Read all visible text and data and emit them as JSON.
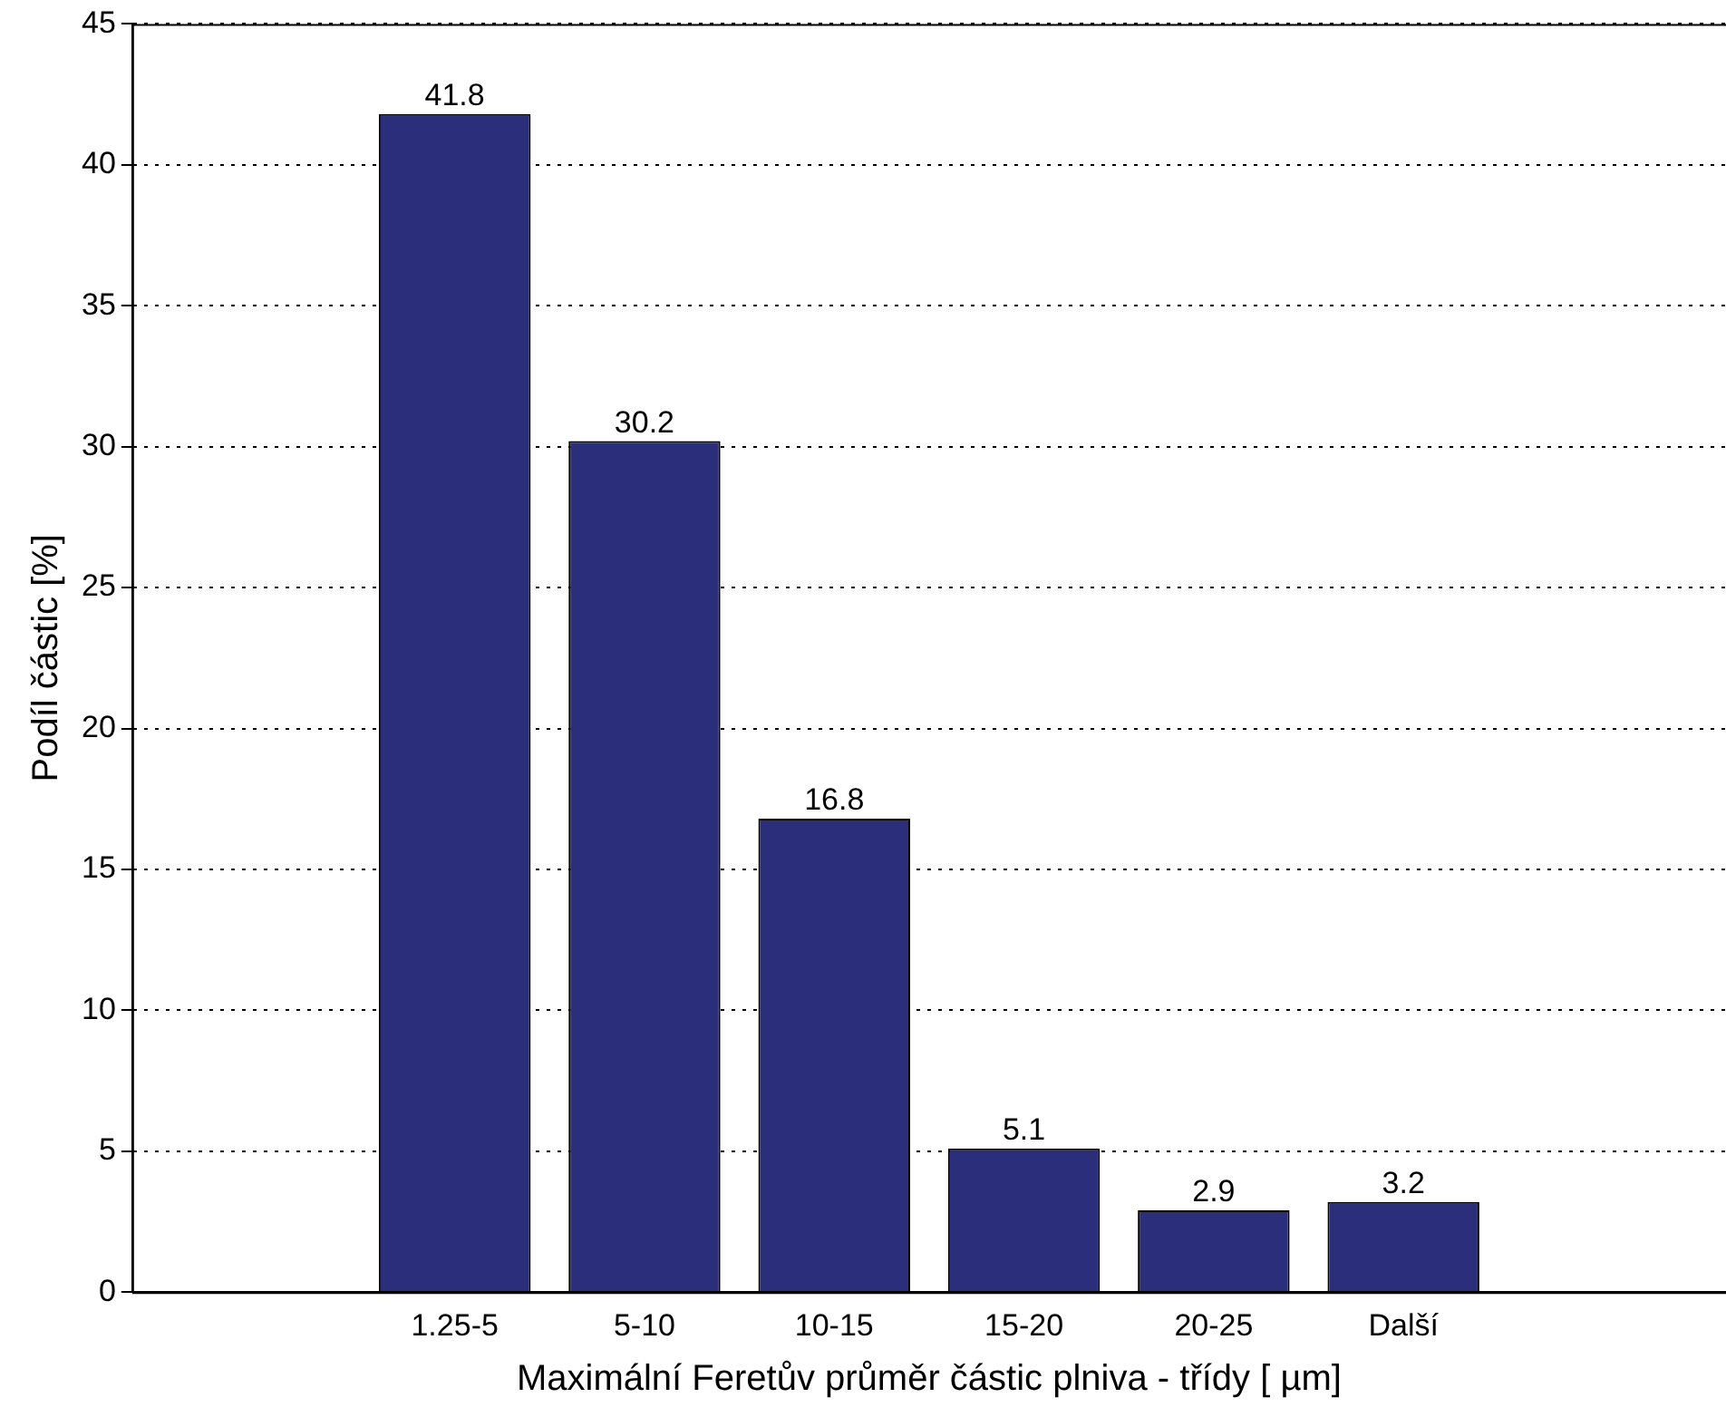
{
  "chart_data": {
    "type": "bar",
    "xlabel": "Maximální Feretův průměr částic plniva - třídy [ µm]",
    "ylabel": "Podíl částic [%]",
    "categories": [
      "1.25-5",
      "5-10",
      "10-15",
      "15-20",
      "20-25",
      "Další"
    ],
    "values": [
      41.8,
      30.2,
      16.8,
      5.1,
      2.9,
      3.2
    ],
    "color": "#2b2e7b",
    "ylim": [
      0,
      45
    ],
    "yticks": [
      0,
      5,
      10,
      15,
      20,
      25,
      30,
      35,
      40,
      45
    ],
    "grid": "y",
    "data_labels": true,
    "legend": false
  }
}
